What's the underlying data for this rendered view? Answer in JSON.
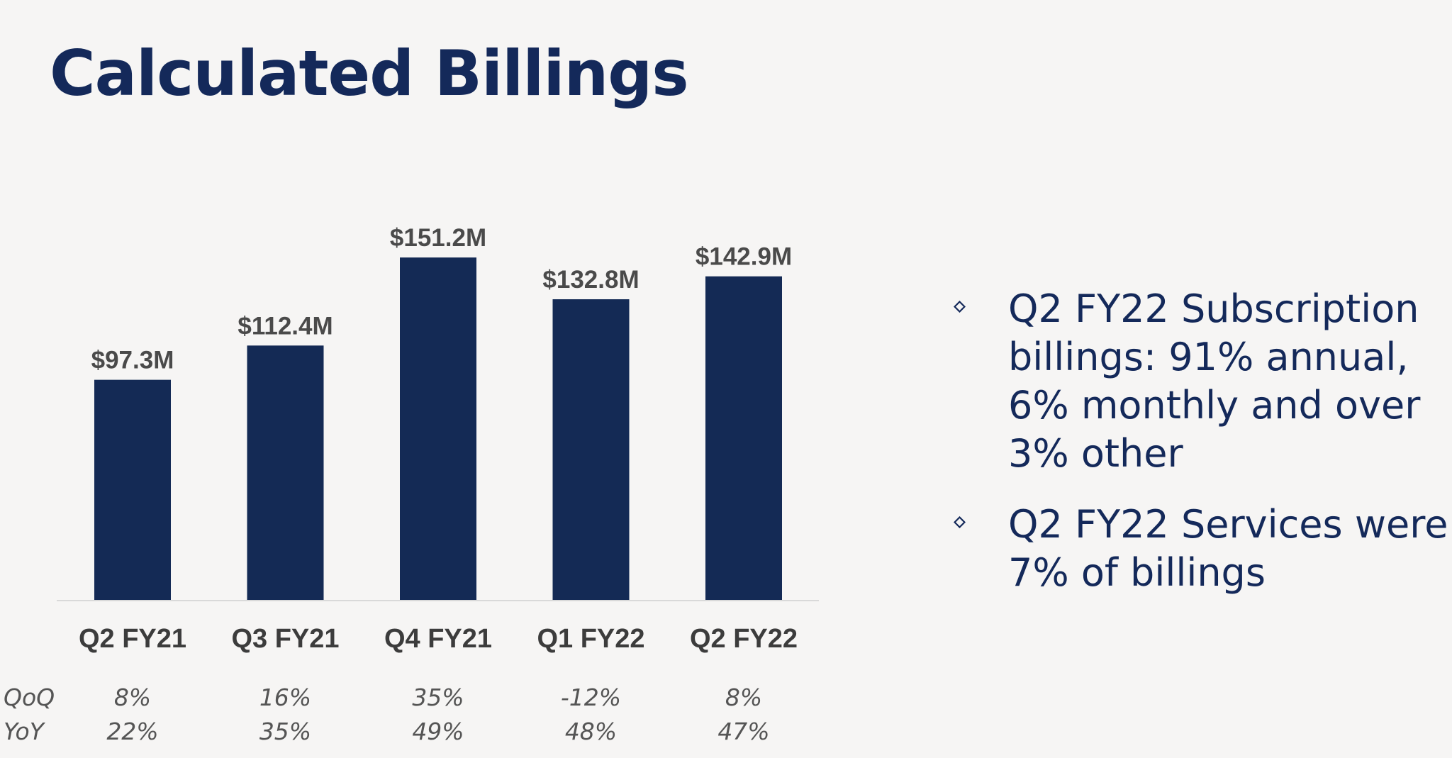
{
  "page": {
    "title": "Calculated Billings"
  },
  "bullets": [
    {
      "icon": "diamond-outline-icon",
      "text": "Q2 FY22 Subscription billings: 91% annual, 6% monthly and over 3% other"
    },
    {
      "icon": "diamond-outline-icon",
      "text": "Q2 FY22 Services were 7% of billings"
    }
  ],
  "colors": {
    "bar": "#142a55",
    "title": "#14295a",
    "background": "#f6f5f4"
  },
  "chart_data": {
    "type": "bar",
    "title": "",
    "xlabel": "",
    "ylabel": "",
    "categories": [
      "Q2 FY21",
      "Q3 FY21",
      "Q4 FY21",
      "Q1 FY22",
      "Q2 FY22"
    ],
    "values": [
      97.3,
      112.4,
      151.2,
      132.8,
      142.9
    ],
    "value_labels": [
      "$97.3M",
      "$112.4M",
      "$151.2M",
      "$132.8M",
      "$142.9M"
    ],
    "ylim": [
      0,
      160
    ],
    "grid": false,
    "legend": "none",
    "growth_rows": [
      {
        "label": "QoQ",
        "values": [
          "8%",
          "16%",
          "35%",
          "-12%",
          "8%"
        ]
      },
      {
        "label": "YoY",
        "values": [
          "22%",
          "35%",
          "49%",
          "48%",
          "47%"
        ]
      }
    ]
  }
}
